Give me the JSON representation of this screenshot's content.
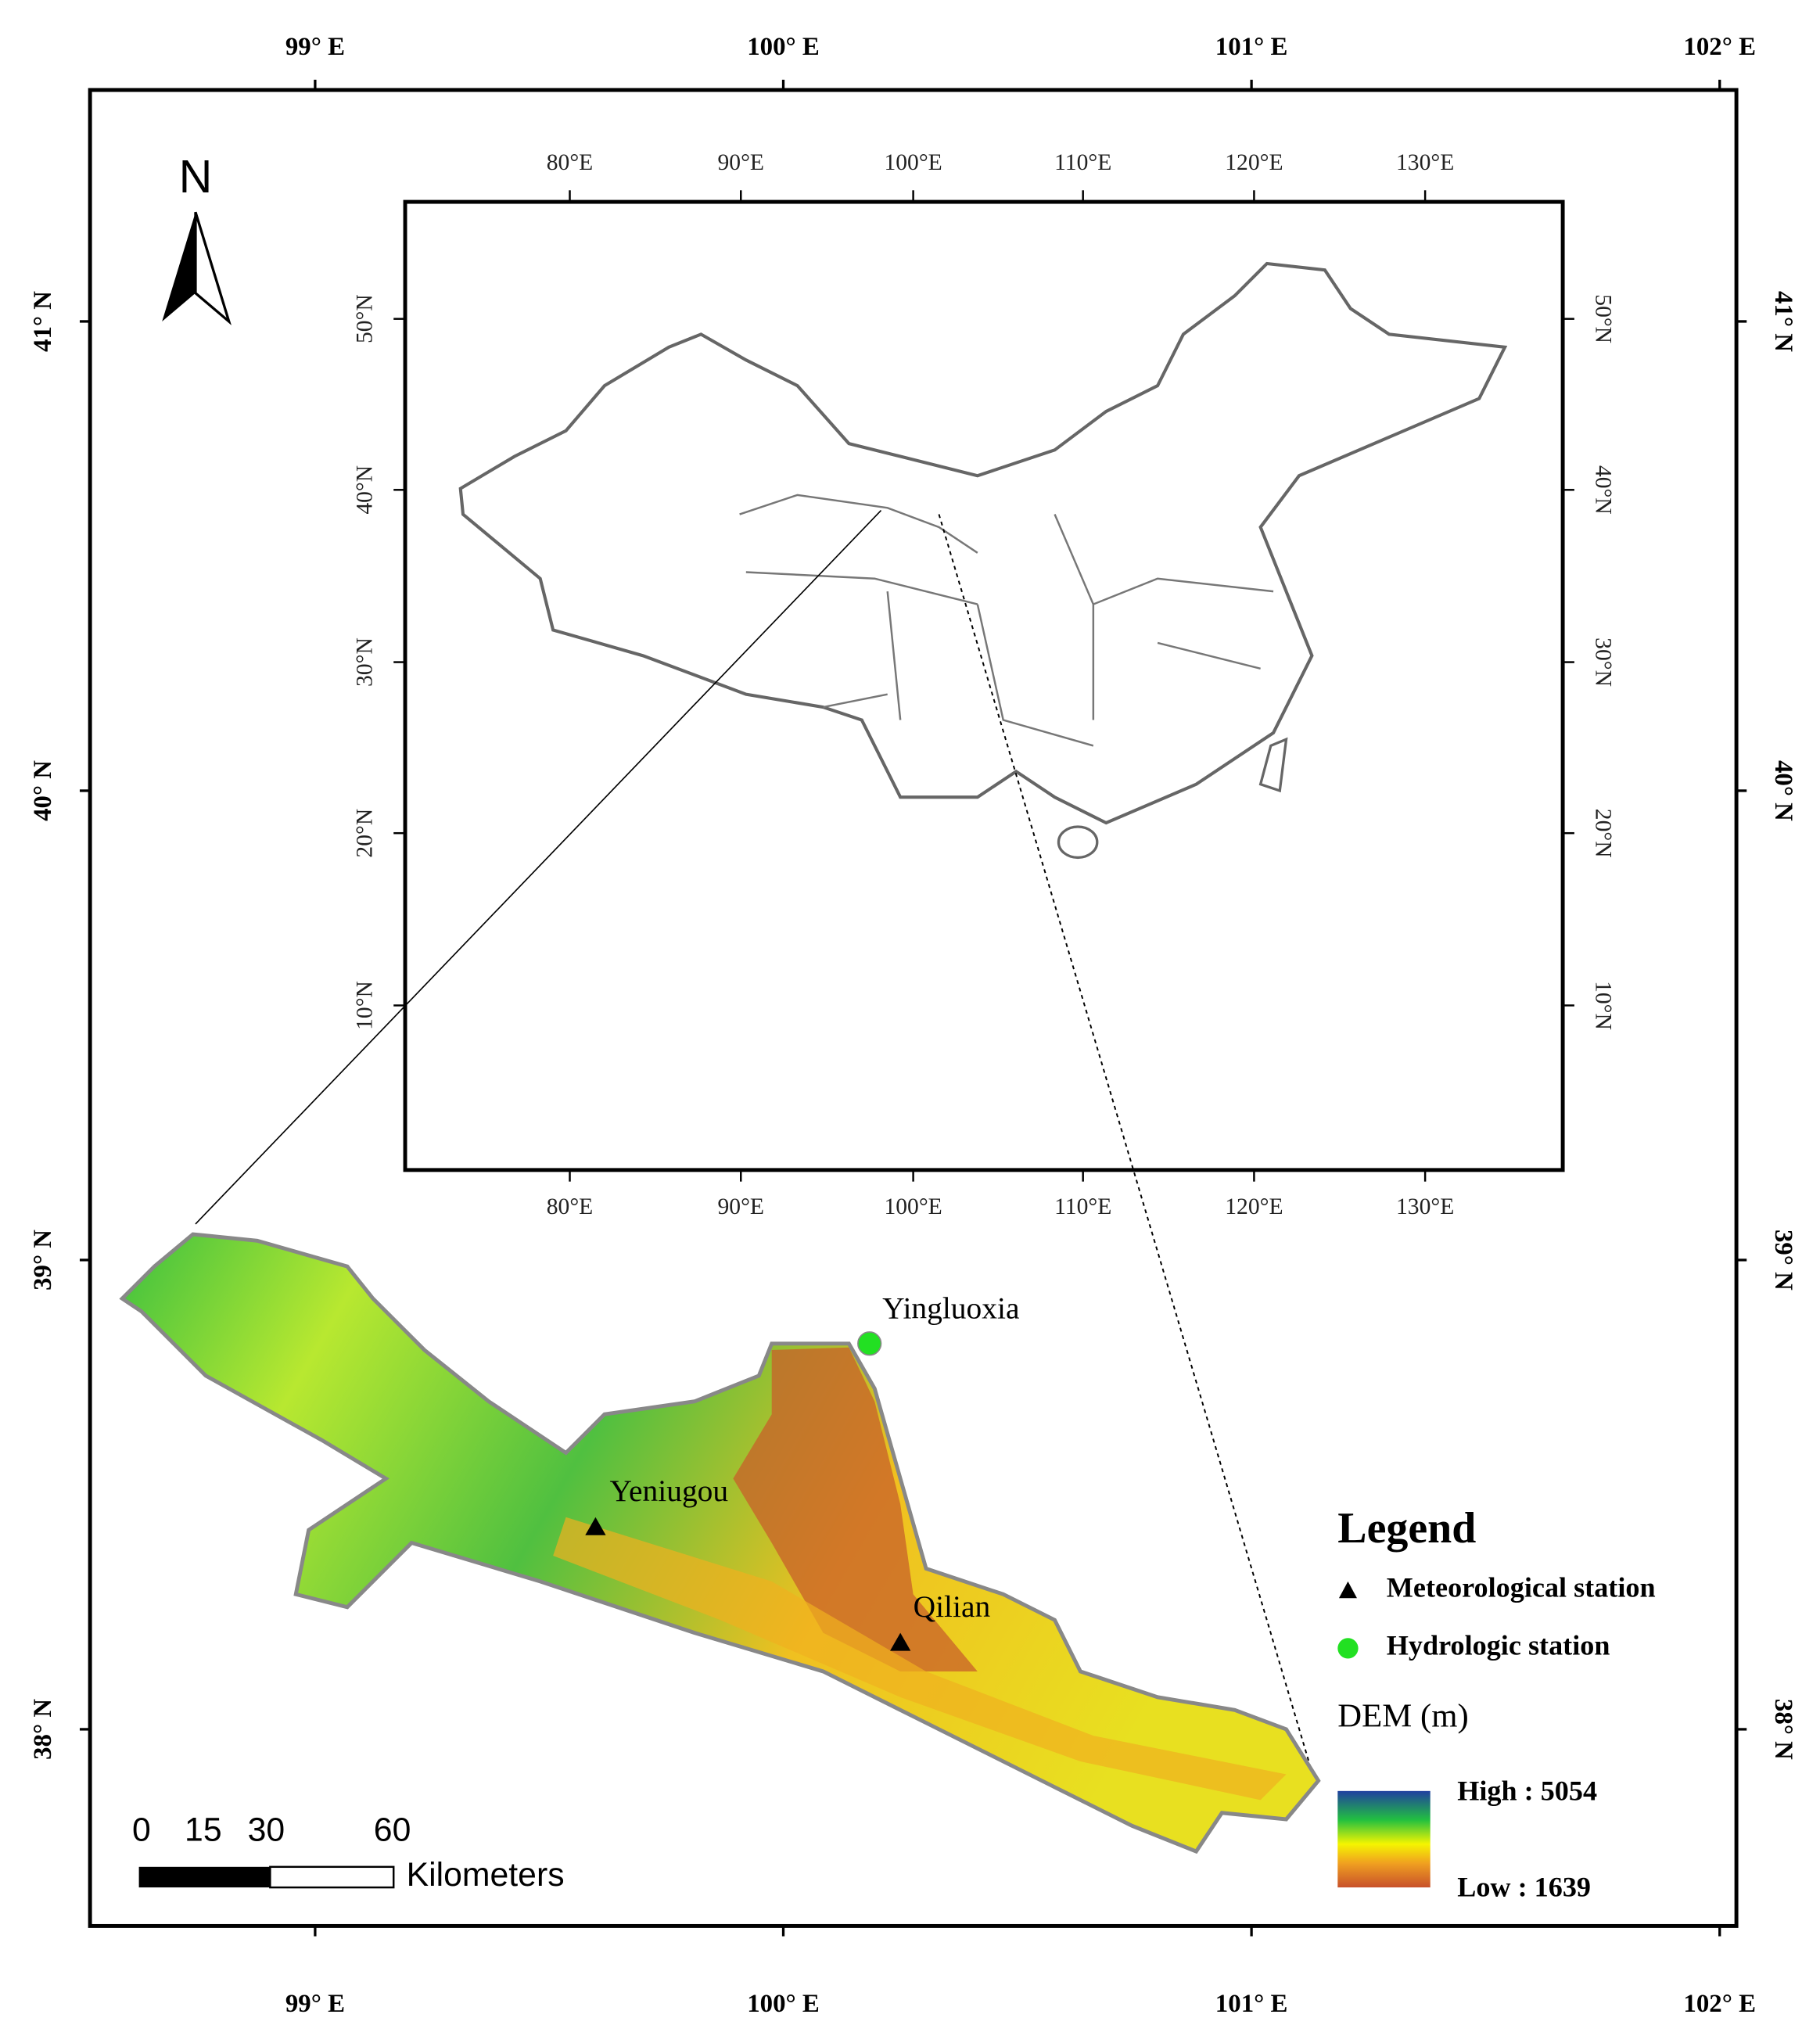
{
  "map": {
    "outer_top": [
      "99° E",
      "100° E",
      "101° E",
      "102° E"
    ],
    "outer_bottom": [
      "99° E",
      "100° E",
      "101° E",
      "102° E"
    ],
    "outer_left": [
      "41° N",
      "40° N",
      "39° N",
      "38° N"
    ],
    "outer_right": [
      "41° N",
      "40° N",
      "39° N",
      "38° N"
    ],
    "inset_top": [
      "80°E",
      "90°E",
      "100°E",
      "110°E",
      "120°E",
      "130°E"
    ],
    "inset_bottom": [
      "80°E",
      "90°E",
      "100°E",
      "110°E",
      "120°E",
      "130°E"
    ],
    "inset_left": [
      "50°N",
      "40°N",
      "30°N",
      "20°N",
      "10°N"
    ],
    "inset_right": [
      "50°N",
      "40°N",
      "30°N",
      "20°N",
      "10°N"
    ],
    "north": "N",
    "stations": [
      "Yingluoxia",
      "Yeniugou",
      "Qilian"
    ],
    "legend": {
      "title": "Legend",
      "items": [
        "Meteorological station",
        "Hydrologic station"
      ],
      "dem_title": "DEM (m)",
      "high": "High : 5054",
      "low": "Low : 1639"
    },
    "scale": {
      "labels": [
        "0",
        "15",
        "30",
        "60"
      ],
      "unit": "Kilometers"
    }
  }
}
